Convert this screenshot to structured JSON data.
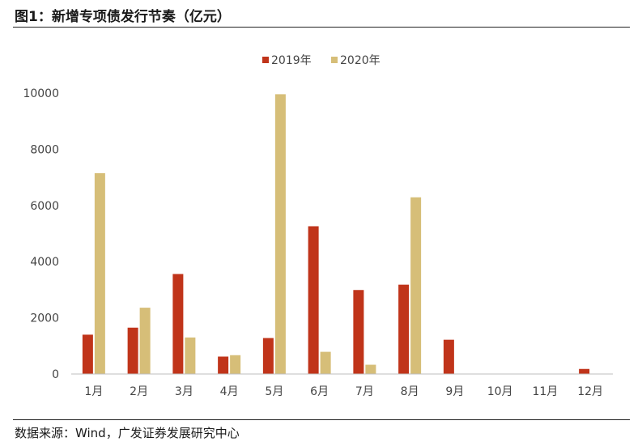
{
  "figure": {
    "title": "图1：新增专项债发行节奏（亿元）",
    "source": "数据来源：Wind，广发证券发展研究中心"
  },
  "colors": {
    "series_2019": "#c0341a",
    "series_2020": "#d6be78",
    "axis": "#bfbfbf",
    "text": "#444444"
  },
  "chart_data": {
    "type": "bar",
    "categories": [
      "1月",
      "2月",
      "3月",
      "4月",
      "5月",
      "6月",
      "7月",
      "8月",
      "9月",
      "10月",
      "11月",
      "12月"
    ],
    "series": [
      {
        "name": "2019年",
        "values": [
          1400,
          1650,
          3560,
          620,
          1280,
          5260,
          2990,
          3180,
          1220,
          0,
          0,
          180
        ]
      },
      {
        "name": "2020年",
        "values": [
          7150,
          2360,
          1300,
          670,
          9960,
          790,
          330,
          6290,
          0,
          0,
          0,
          0
        ]
      }
    ],
    "y_ticks": [
      "0",
      "2000",
      "4000",
      "6000",
      "8000",
      "10000"
    ],
    "ylim": [
      0,
      10000
    ],
    "legend_position": "top-center",
    "grid": false,
    "title": "",
    "xlabel": "",
    "ylabel": ""
  }
}
